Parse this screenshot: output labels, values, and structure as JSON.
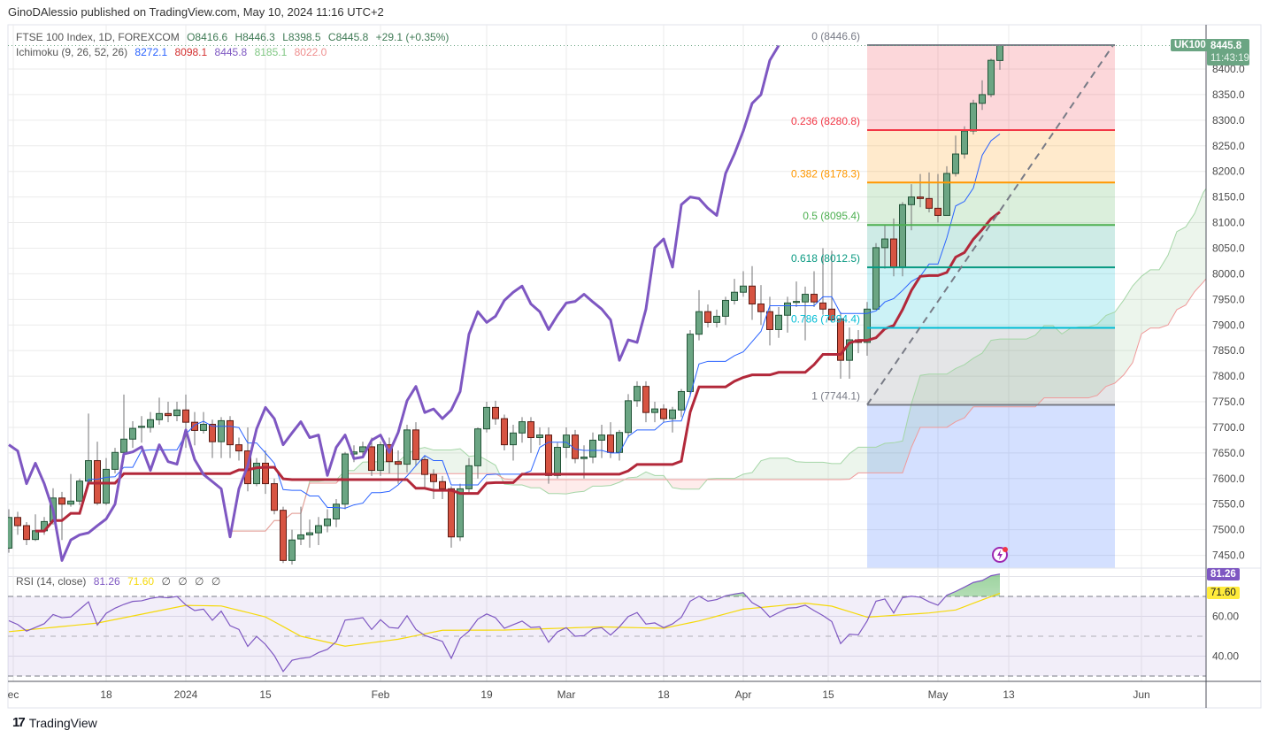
{
  "header": {
    "published": "GinoDAlessio published on TradingView.com, May 10, 2024 11:16 UTC+2"
  },
  "legend": {
    "symbol": "FTSE 100 Index, 1D, FOREXCOM",
    "open": "O8416.6",
    "high": "H8446.3",
    "low": "L8398.5",
    "close": "C8445.8",
    "change": "+29.1 (+0.35%)",
    "ichimoku_label": "Ichimoku (9, 26, 52, 26)",
    "ichimoku_values": [
      "8272.1",
      "8098.1",
      "8445.8",
      "8185.1",
      "8022.0"
    ]
  },
  "rsi_legend": {
    "label": "RSI (14, close)",
    "value": "81.26",
    "ma": "71.60",
    "extras": [
      "∅",
      "∅",
      "∅",
      "∅"
    ]
  },
  "price_badge": {
    "symbol": "UK100",
    "price": "8445.8",
    "countdown": "11:43:19"
  },
  "rsi_badges": {
    "rsi": "81.26",
    "ma": "71.60"
  },
  "colors": {
    "up": "#6ba583",
    "up_border": "#225437",
    "down": "#d75442",
    "down_border": "#5b1a13",
    "tenkan": "#2962ff",
    "kijun": "#b2283a",
    "chikou": "#7e57c2",
    "span_a": "#a5d6a7",
    "span_b": "#ef9a9a",
    "rsi": "#7e57c2",
    "rsi_ma": "#f5d90a"
  },
  "footer": {
    "brand": "TradingView"
  },
  "chart_data": {
    "type": "candlestick",
    "title": "FTSE 100 Index, 1D, FOREXCOM",
    "ylim": [
      7440,
      8470
    ],
    "price_ticks": [
      "8400.0",
      "8350.0",
      "8300.0",
      "8250.0",
      "8200.0",
      "8150.0",
      "8100.0",
      "8050.0",
      "8000.0",
      "7950.0",
      "7900.0",
      "7850.0",
      "7800.0",
      "7750.0",
      "7700.0",
      "7650.0",
      "7600.0",
      "7550.0",
      "7500.0",
      "7450.0"
    ],
    "time_labels": [
      {
        "label": "ec",
        "bar": 0.5
      },
      {
        "label": "18",
        "bar": 11
      },
      {
        "label": "2024",
        "bar": 20
      },
      {
        "label": "15",
        "bar": 29
      },
      {
        "label": "Feb",
        "bar": 42
      },
      {
        "label": "19",
        "bar": 54
      },
      {
        "label": "Mar",
        "bar": 63
      },
      {
        "label": "18",
        "bar": 74
      },
      {
        "label": "Apr",
        "bar": 83
      },
      {
        "label": "15",
        "bar": 92.6
      },
      {
        "label": "May",
        "bar": 105
      },
      {
        "label": "13",
        "bar": 113
      },
      {
        "label": "Jun",
        "bar": 128
      }
    ],
    "candles_ohlc": [
      [
        7464,
        7540,
        7455,
        7524
      ],
      [
        7524,
        7535,
        7490,
        7508
      ],
      [
        7508,
        7515,
        7470,
        7481
      ],
      [
        7481,
        7530,
        7478,
        7498
      ],
      [
        7498,
        7525,
        7490,
        7516
      ],
      [
        7516,
        7581,
        7510,
        7562
      ],
      [
        7562,
        7574,
        7480,
        7550
      ],
      [
        7550,
        7609,
        7545,
        7556
      ],
      [
        7556,
        7600,
        7548,
        7595
      ],
      [
        7595,
        7727,
        7590,
        7635
      ],
      [
        7635,
        7672,
        7548,
        7552
      ],
      [
        7552,
        7640,
        7548,
        7618
      ],
      [
        7618,
        7660,
        7610,
        7651
      ],
      [
        7651,
        7764,
        7645,
        7677
      ],
      [
        7677,
        7712,
        7660,
        7698
      ],
      [
        7700,
        7722,
        7670,
        7702
      ],
      [
        7700,
        7730,
        7690,
        7715
      ],
      [
        7715,
        7758,
        7705,
        7727
      ],
      [
        7727,
        7750,
        7710,
        7723
      ],
      [
        7723,
        7750,
        7712,
        7734
      ],
      [
        7734,
        7764,
        7660,
        7710
      ],
      [
        7710,
        7730,
        7665,
        7694
      ],
      [
        7694,
        7730,
        7688,
        7706
      ],
      [
        7706,
        7715,
        7640,
        7672
      ],
      [
        7672,
        7720,
        7640,
        7713
      ],
      [
        7713,
        7722,
        7640,
        7666
      ],
      [
        7666,
        7680,
        7635,
        7654
      ],
      [
        7654,
        7700,
        7575,
        7590
      ],
      [
        7590,
        7640,
        7585,
        7630
      ],
      [
        7630,
        7655,
        7570,
        7590
      ],
      [
        7590,
        7600,
        7530,
        7538
      ],
      [
        7538,
        7545,
        7435,
        7440
      ],
      [
        7440,
        7500,
        7432,
        7480
      ],
      [
        7482,
        7545,
        7470,
        7490
      ],
      [
        7490,
        7520,
        7465,
        7494
      ],
      [
        7494,
        7525,
        7470,
        7508
      ],
      [
        7508,
        7540,
        7495,
        7521
      ],
      [
        7521,
        7560,
        7505,
        7550
      ],
      [
        7550,
        7652,
        7540,
        7648
      ],
      [
        7648,
        7665,
        7632,
        7652
      ],
      [
        7652,
        7672,
        7645,
        7662
      ],
      [
        7662,
        7680,
        7605,
        7616
      ],
      [
        7616,
        7672,
        7605,
        7666
      ],
      [
        7666,
        7680,
        7610,
        7633
      ],
      [
        7633,
        7655,
        7590,
        7628
      ],
      [
        7628,
        7705,
        7612,
        7695
      ],
      [
        7695,
        7710,
        7625,
        7637
      ],
      [
        7637,
        7645,
        7580,
        7608
      ],
      [
        7608,
        7618,
        7560,
        7594
      ],
      [
        7594,
        7605,
        7560,
        7580
      ],
      [
        7580,
        7585,
        7465,
        7486
      ],
      [
        7486,
        7590,
        7478,
        7580
      ],
      [
        7580,
        7640,
        7570,
        7625
      ],
      [
        7625,
        7700,
        7600,
        7697
      ],
      [
        7697,
        7750,
        7690,
        7739
      ],
      [
        7739,
        7752,
        7705,
        7717
      ],
      [
        7717,
        7725,
        7655,
        7666
      ],
      [
        7666,
        7705,
        7635,
        7689
      ],
      [
        7689,
        7720,
        7670,
        7711
      ],
      [
        7711,
        7720,
        7650,
        7680
      ],
      [
        7680,
        7700,
        7665,
        7685
      ],
      [
        7685,
        7700,
        7590,
        7606
      ],
      [
        7606,
        7670,
        7600,
        7661
      ],
      [
        7661,
        7700,
        7640,
        7685
      ],
      [
        7685,
        7695,
        7630,
        7639
      ],
      [
        7639,
        7665,
        7600,
        7642
      ],
      [
        7642,
        7690,
        7630,
        7675
      ],
      [
        7675,
        7705,
        7640,
        7685
      ],
      [
        7685,
        7710,
        7640,
        7651
      ],
      [
        7651,
        7695,
        7635,
        7690
      ],
      [
        7690,
        7765,
        7680,
        7752
      ],
      [
        7752,
        7790,
        7740,
        7780
      ],
      [
        7780,
        7790,
        7710,
        7729
      ],
      [
        7729,
        7750,
        7710,
        7736
      ],
      [
        7736,
        7745,
        7710,
        7717
      ],
      [
        7717,
        7740,
        7690,
        7734
      ],
      [
        7734,
        7775,
        7720,
        7770
      ],
      [
        7770,
        7890,
        7760,
        7882
      ],
      [
        7882,
        7968,
        7870,
        7926
      ],
      [
        7926,
        7940,
        7895,
        7905
      ],
      [
        7905,
        7930,
        7895,
        7917
      ],
      [
        7917,
        7955,
        7900,
        7948
      ],
      [
        7948,
        7990,
        7940,
        7964
      ],
      [
        7964,
        8005,
        7955,
        7976
      ],
      [
        7976,
        8015,
        7910,
        7941
      ],
      [
        7941,
        7978,
        7900,
        7926
      ],
      [
        7926,
        7955,
        7860,
        7891
      ],
      [
        7891,
        7935,
        7875,
        7919
      ],
      [
        7919,
        7955,
        7885,
        7943
      ],
      [
        7944,
        7985,
        7935,
        7946
      ],
      [
        7945,
        7975,
        7870,
        7960
      ],
      [
        7960,
        8005,
        7935,
        7945
      ],
      [
        7943,
        8050,
        7920,
        7931
      ],
      [
        7931,
        8045,
        7905,
        7910
      ],
      [
        7912,
        7925,
        7795,
        7831
      ],
      [
        7831,
        7895,
        7795,
        7871
      ],
      [
        7871,
        7890,
        7845,
        7866
      ],
      [
        7866,
        7945,
        7840,
        7931
      ],
      [
        7931,
        8060,
        7930,
        8051
      ],
      [
        8051,
        8095,
        8010,
        8068
      ],
      [
        8068,
        8108,
        7995,
        8013
      ],
      [
        8013,
        8140,
        7995,
        8135
      ],
      [
        8135,
        8175,
        8085,
        8150
      ],
      [
        8150,
        8195,
        8130,
        8147
      ],
      [
        8147,
        8198,
        8120,
        8128
      ],
      [
        8128,
        8195,
        8100,
        8114
      ],
      [
        8114,
        8210,
        8114,
        8196
      ],
      [
        8196,
        8270,
        8190,
        8234
      ],
      [
        8234,
        8288,
        8225,
        8279
      ],
      [
        8279,
        8340,
        8272,
        8333
      ],
      [
        8333,
        8378,
        8320,
        8350
      ],
      [
        8350,
        8420,
        8345,
        8417
      ],
      [
        8416.6,
        8446.3,
        8398.5,
        8445.8
      ]
    ],
    "ichimoku": {
      "conversion": 9,
      "base": 26,
      "lagging_span": 52,
      "displacement": 26
    },
    "fib_retracement": {
      "from": 8446.6,
      "to": 7744.1,
      "levels": [
        {
          "ratio": 0,
          "price": 8446.6,
          "label": "0 (8446.6)",
          "color": "#787b86",
          "fill": "rgba(242,54,69,0.2)"
        },
        {
          "ratio": 0.236,
          "price": 8280.8,
          "label": "0.236 (8280.8)",
          "color": "#f23645",
          "fill": "rgba(255,152,0,0.2)"
        },
        {
          "ratio": 0.382,
          "price": 8178.3,
          "label": "0.382 (8178.3)",
          "color": "#ff9800",
          "fill": "rgba(76,175,80,0.2)"
        },
        {
          "ratio": 0.5,
          "price": 8095.4,
          "label": "0.5 (8095.4)",
          "color": "#4caf50",
          "fill": "rgba(8,153,129,0.2)"
        },
        {
          "ratio": 0.618,
          "price": 8012.5,
          "label": "0.618 (8012.5)",
          "color": "#089981",
          "fill": "rgba(0,188,212,0.2)"
        },
        {
          "ratio": 0.786,
          "price": 7894.4,
          "label": "0.786 (7894.4)",
          "color": "#00bcd4",
          "fill": "rgba(120,123,134,0.2)"
        },
        {
          "ratio": 1,
          "price": 7744.1,
          "label": "1 (7744.1)",
          "color": "#787b86",
          "fill": "rgba(41,98,255,0.2)"
        }
      ]
    },
    "rsi": {
      "ylim": [
        25,
        90
      ],
      "bands": [
        30,
        50,
        70
      ],
      "ticks": [
        "60.00",
        "40.00"
      ],
      "tick_values": [
        60,
        40
      ],
      "values": [
        57.8,
        55.9,
        52.6,
        54.4,
        56.3,
        60.9,
        59.3,
        59.7,
        63.5,
        67.3,
        55.6,
        61.5,
        64.1,
        66,
        67.5,
        67.8,
        69,
        69.7,
        69.3,
        70,
        65.7,
        62.9,
        63.6,
        58,
        62.6,
        55.3,
        53.4,
        44.9,
        49.9,
        45.9,
        40.3,
        32.3,
        37.9,
        38.9,
        39.4,
        41.8,
        43.4,
        47.3,
        58.1,
        58.6,
        59.3,
        53.4,
        58.3,
        54.4,
        54,
        60.3,
        53.4,
        50.4,
        48.9,
        47.4,
        38.9,
        48.9,
        52.6,
        58.6,
        61.2,
        59.3,
        54,
        55.8,
        57.6,
        54.4,
        54.7,
        47,
        52.2,
        54.3,
        50,
        50.3,
        53.7,
        54.3,
        50.6,
        54.7,
        59.9,
        61.9,
        56.1,
        56.7,
        54.3,
        56.2,
        59.5,
        67.6,
        70.1,
        67.6,
        68.4,
        70.3,
        71.2,
        71.9,
        66.9,
        64.4,
        59.6,
        61.9,
        64.1,
        64.4,
        65.6,
        62.9,
        60.4,
        57.4,
        46.3,
        51,
        50.7,
        57.7,
        67.6,
        68.7,
        61.7,
        69.4,
        70.1,
        69.6,
        67.3,
        65.6,
        70.6,
        72.5,
        74.7,
        77,
        78,
        80.4,
        81.26
      ],
      "ma_keypoints": [
        [
          0,
          52.3
        ],
        [
          10,
          56.6
        ],
        [
          20,
          65.5
        ],
        [
          24,
          65.2
        ],
        [
          29,
          59.7
        ],
        [
          33,
          50
        ],
        [
          38,
          45
        ],
        [
          44,
          48.5
        ],
        [
          49,
          53
        ],
        [
          56,
          53.1
        ],
        [
          67,
          54.7
        ],
        [
          74,
          54
        ],
        [
          78,
          57.7
        ],
        [
          83,
          63.6
        ],
        [
          90,
          66.6
        ],
        [
          93,
          65.1
        ],
        [
          97,
          59.6
        ],
        [
          104,
          61.7
        ],
        [
          107,
          63.2
        ],
        [
          112,
          71.6
        ]
      ]
    }
  }
}
